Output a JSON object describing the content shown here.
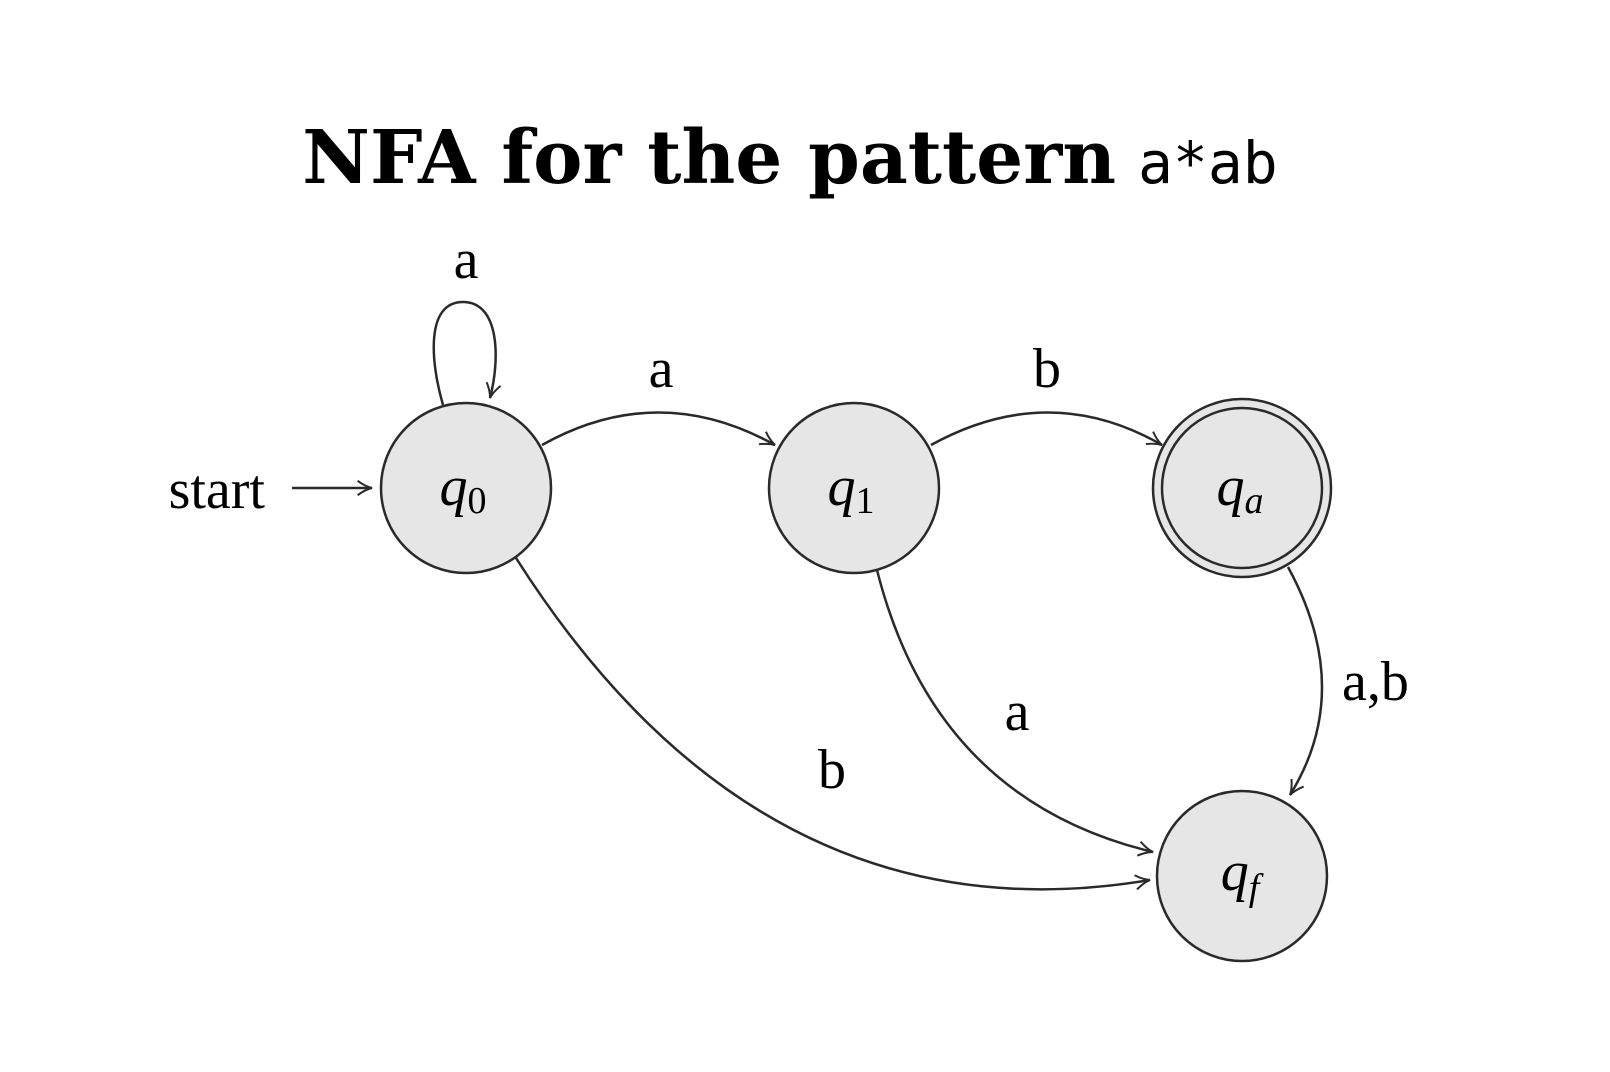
{
  "title": {
    "text": "NFA for the pattern",
    "pattern": "a*ab"
  },
  "start_label": "start",
  "states": [
    {
      "id": "q0",
      "base": "q",
      "sub": "0",
      "accepting": false
    },
    {
      "id": "q1",
      "base": "q",
      "sub": "1",
      "accepting": false
    },
    {
      "id": "qa",
      "base": "q",
      "sub": "a",
      "accepting": true
    },
    {
      "id": "qf",
      "base": "q",
      "sub": "f",
      "accepting": false
    }
  ],
  "transitions": [
    {
      "from": "q0",
      "to": "q0",
      "label": "a"
    },
    {
      "from": "q0",
      "to": "q1",
      "label": "a"
    },
    {
      "from": "q1",
      "to": "qa",
      "label": "b"
    },
    {
      "from": "q0",
      "to": "qf",
      "label": "b"
    },
    {
      "from": "q1",
      "to": "qf",
      "label": "a"
    },
    {
      "from": "qa",
      "to": "qf",
      "label": "a,b"
    }
  ],
  "colors": {
    "node_fill": "#e6e6e6",
    "stroke": "#2a2a2a"
  }
}
